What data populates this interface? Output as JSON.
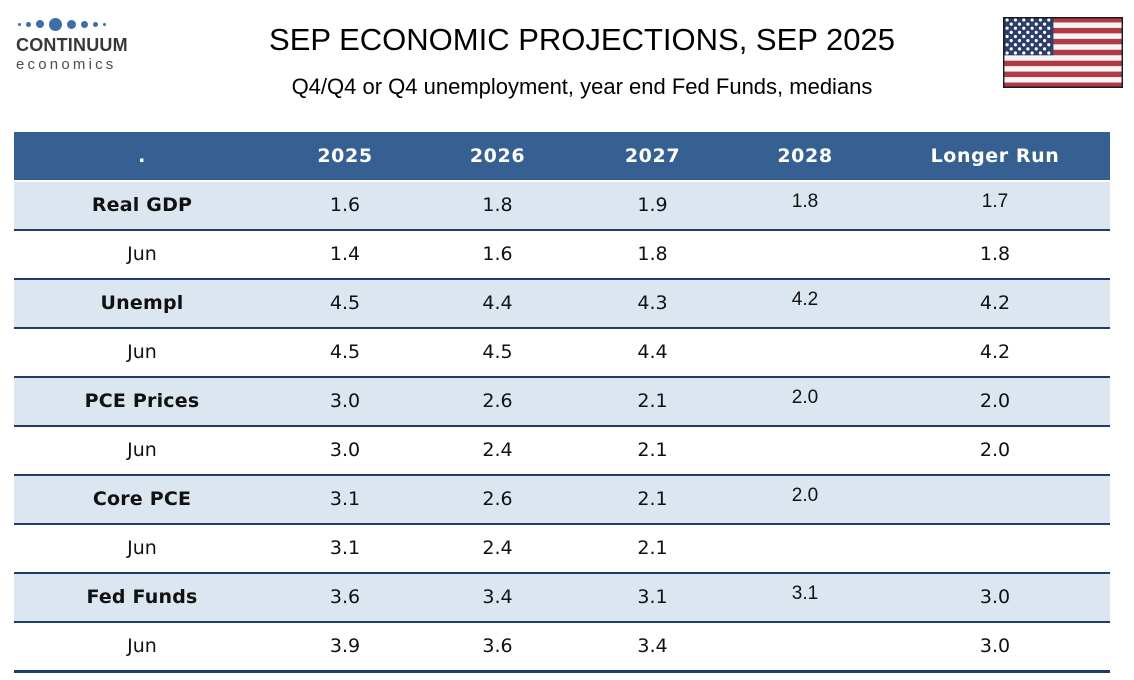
{
  "brand": {
    "name": "CONTINUUM",
    "sub": "economics"
  },
  "header": {
    "title": "SEP ECONOMIC PROJECTIONS, SEP 2025",
    "subtitle": "Q4/Q4 or Q4 unemployment, year end Fed Funds, medians"
  },
  "flag": {
    "icon": "us-flag-icon"
  },
  "colors": {
    "header_blue": "#376092",
    "row_light_blue": "#dce6f1",
    "row_white": "#ffffff",
    "separator_navy": "#1f3d66",
    "logo_dot_blue": "#3d6ea5",
    "flag_red": "#b03a45",
    "flag_canton_blue": "#2d3e68"
  },
  "chart_data": {
    "type": "table",
    "title": "SEP ECONOMIC PROJECTIONS, SEP 2025",
    "subtitle": "Q4/Q4 or Q4 unemployment, year end Fed Funds, medians",
    "columns": [
      ".",
      "2025",
      "2026",
      "2027",
      "2028",
      "Longer Run"
    ],
    "rows": [
      {
        "label": "Real GDP",
        "kind": "indicator",
        "values": [
          "1.6",
          "1.8",
          "1.9",
          "1.8",
          "1.7"
        ]
      },
      {
        "label": "Jun",
        "kind": "june",
        "values": [
          "1.4",
          "1.6",
          "1.8",
          "",
          "1.8"
        ]
      },
      {
        "label": "Unempl",
        "kind": "indicator",
        "values": [
          "4.5",
          "4.4",
          "4.3",
          "4.2",
          "4.2"
        ]
      },
      {
        "label": "Jun",
        "kind": "june",
        "values": [
          "4.5",
          "4.5",
          "4.4",
          "",
          "4.2"
        ]
      },
      {
        "label": "PCE Prices",
        "kind": "indicator",
        "values": [
          "3.0",
          "2.6",
          "2.1",
          "2.0",
          "2.0"
        ]
      },
      {
        "label": "Jun",
        "kind": "june",
        "values": [
          "3.0",
          "2.4",
          "2.1",
          "",
          "2.0"
        ]
      },
      {
        "label": "Core PCE",
        "kind": "indicator",
        "values": [
          "3.1",
          "2.6",
          "2.1",
          "2.0",
          ""
        ]
      },
      {
        "label": "Jun",
        "kind": "june",
        "values": [
          "3.1",
          "2.4",
          "2.1",
          "",
          ""
        ]
      },
      {
        "label": "Fed Funds",
        "kind": "indicator",
        "values": [
          "3.6",
          "3.4",
          "3.1",
          "3.1",
          "3.0"
        ]
      },
      {
        "label": "Jun",
        "kind": "june",
        "values": [
          "3.9",
          "3.6",
          "3.4",
          "",
          "3.0"
        ]
      }
    ]
  }
}
